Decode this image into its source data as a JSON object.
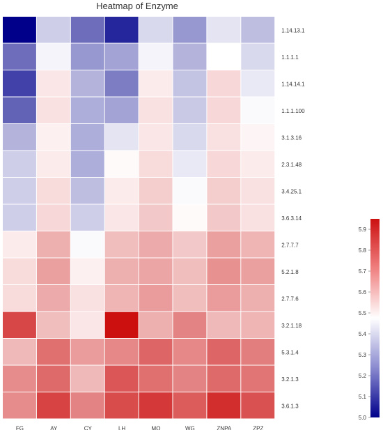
{
  "chart_data": {
    "type": "heatmap",
    "title": "Heatmap of Enzyme",
    "xlabel": "",
    "ylabel": "",
    "columns": [
      "FG",
      "AY",
      "CY",
      "LH",
      "MQ",
      "WG",
      "ZNPA",
      "ZPZ"
    ],
    "rows": [
      "1.14.13.1",
      "1.1.1.1",
      "1.14.14.1",
      "1.1.1.100",
      "3.1.3.16",
      "2.3.1.48",
      "3.4.25.1",
      "3.6.3.14",
      "2.7.7.7",
      "5.2.1.8",
      "2.7.7.6",
      "3.2.1.18",
      "5.3.1.4",
      "3.2.1.3",
      "3.6.1.3"
    ],
    "values": [
      [
        5.0,
        5.38,
        5.2,
        5.07,
        5.4,
        5.28,
        5.42,
        5.35
      ],
      [
        5.2,
        5.45,
        5.28,
        5.3,
        5.45,
        5.33,
        5.47,
        5.4
      ],
      [
        5.12,
        5.52,
        5.33,
        5.23,
        5.51,
        5.36,
        5.55,
        5.43
      ],
      [
        5.18,
        5.53,
        5.32,
        5.3,
        5.53,
        5.37,
        5.55,
        5.46
      ],
      [
        5.33,
        5.5,
        5.32,
        5.42,
        5.52,
        5.4,
        5.53,
        5.49
      ],
      [
        5.38,
        5.51,
        5.32,
        5.48,
        5.54,
        5.43,
        5.55,
        5.51
      ],
      [
        5.38,
        5.54,
        5.35,
        5.51,
        5.57,
        5.46,
        5.57,
        5.53
      ],
      [
        5.38,
        5.55,
        5.38,
        5.52,
        5.58,
        5.48,
        5.58,
        5.53
      ],
      [
        5.51,
        5.63,
        5.46,
        5.6,
        5.64,
        5.58,
        5.66,
        5.62
      ],
      [
        5.54,
        5.66,
        5.5,
        5.63,
        5.65,
        5.6,
        5.69,
        5.66
      ],
      [
        5.54,
        5.64,
        5.53,
        5.62,
        5.67,
        5.6,
        5.67,
        5.63
      ],
      [
        5.84,
        5.6,
        5.52,
        5.95,
        5.63,
        5.72,
        5.61,
        5.62
      ],
      [
        5.61,
        5.76,
        5.67,
        5.71,
        5.78,
        5.71,
        5.78,
        5.73
      ],
      [
        5.7,
        5.77,
        5.61,
        5.81,
        5.76,
        5.72,
        5.77,
        5.75
      ],
      [
        5.7,
        5.85,
        5.72,
        5.83,
        5.87,
        5.8,
        5.89,
        5.82
      ]
    ],
    "color_scale": {
      "min": 5.0,
      "max": 5.95,
      "mid": 5.47,
      "low_color": "#00008b",
      "mid_color": "#ffffff",
      "high_color": "#cc1010"
    },
    "colorbar_ticks": [
      5.0,
      5.1,
      5.2,
      5.3,
      5.4,
      5.5,
      5.6,
      5.7,
      5.8,
      5.9
    ],
    "grid": false,
    "legend_placement": "right"
  }
}
